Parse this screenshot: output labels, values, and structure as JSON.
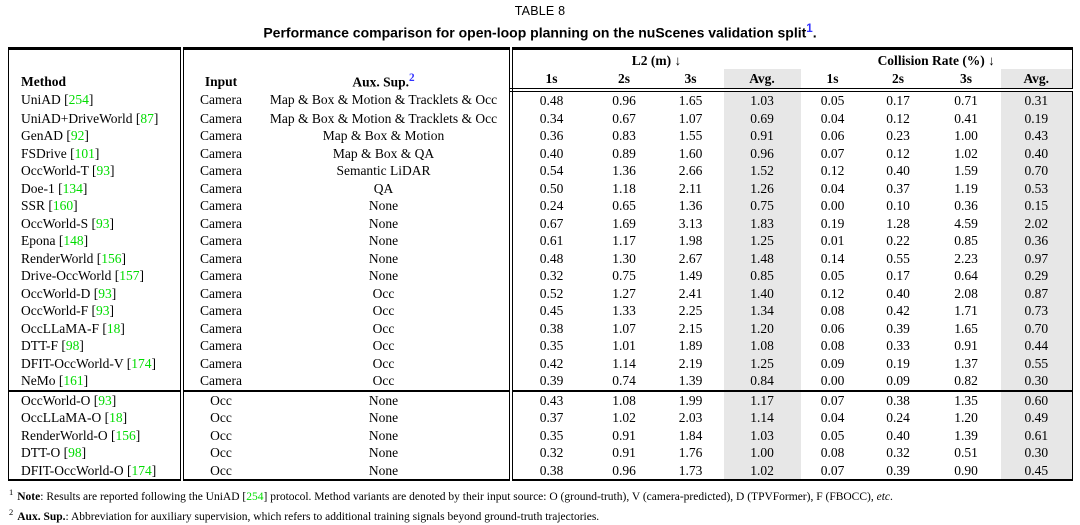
{
  "title": {
    "label": "TABLE 8",
    "caption": "Performance comparison for open-loop planning on the nuScenes validation split",
    "caption_sup": "1",
    "caption_end": "."
  },
  "header": {
    "method": "Method",
    "input": "Input",
    "aux": "Aux. Sup.",
    "aux_sup": "2",
    "group_l2": "L2 (m) ↓",
    "group_cr": "Collision Rate (%) ↓",
    "subs": [
      "1s",
      "2s",
      "3s",
      "Avg."
    ]
  },
  "table": {
    "sections": [
      {
        "name": "camera-input-methods",
        "rows": [
          {
            "method": "UniAD",
            "ref": "254",
            "input": "Camera",
            "aux": "Map & Box & Motion & Tracklets & Occ",
            "l2": [
              "0.48",
              "0.96",
              "1.65",
              "1.03"
            ],
            "cr": [
              "0.05",
              "0.17",
              "0.71",
              "0.31"
            ]
          },
          {
            "method": "UniAD+DriveWorld",
            "ref": "87",
            "input": "Camera",
            "aux": "Map & Box & Motion & Tracklets & Occ",
            "l2": [
              "0.34",
              "0.67",
              "1.07",
              "0.69"
            ],
            "cr": [
              "0.04",
              "0.12",
              "0.41",
              "0.19"
            ]
          },
          {
            "method": "GenAD",
            "ref": "92",
            "input": "Camera",
            "aux": "Map & Box & Motion",
            "l2": [
              "0.36",
              "0.83",
              "1.55",
              "0.91"
            ],
            "cr": [
              "0.06",
              "0.23",
              "1.00",
              "0.43"
            ]
          },
          {
            "method": "FSDrive",
            "ref": "101",
            "input": "Camera",
            "aux": "Map & Box & QA",
            "l2": [
              "0.40",
              "0.89",
              "1.60",
              "0.96"
            ],
            "cr": [
              "0.07",
              "0.12",
              "1.02",
              "0.40"
            ]
          },
          {
            "method": "OccWorld-T",
            "ref": "93",
            "input": "Camera",
            "aux": "Semantic LiDAR",
            "l2": [
              "0.54",
              "1.36",
              "2.66",
              "1.52"
            ],
            "cr": [
              "0.12",
              "0.40",
              "1.59",
              "0.70"
            ]
          },
          {
            "method": "Doe-1",
            "ref": "134",
            "input": "Camera",
            "aux": "QA",
            "l2": [
              "0.50",
              "1.18",
              "2.11",
              "1.26"
            ],
            "cr": [
              "0.04",
              "0.37",
              "1.19",
              "0.53"
            ]
          },
          {
            "method": "SSR",
            "ref": "160",
            "input": "Camera",
            "aux": "None",
            "l2": [
              "0.24",
              "0.65",
              "1.36",
              "0.75"
            ],
            "cr": [
              "0.00",
              "0.10",
              "0.36",
              "0.15"
            ]
          },
          {
            "method": "OccWorld-S",
            "ref": "93",
            "input": "Camera",
            "aux": "None",
            "l2": [
              "0.67",
              "1.69",
              "3.13",
              "1.83"
            ],
            "cr": [
              "0.19",
              "1.28",
              "4.59",
              "2.02"
            ]
          },
          {
            "method": "Epona",
            "ref": "148",
            "input": "Camera",
            "aux": "None",
            "l2": [
              "0.61",
              "1.17",
              "1.98",
              "1.25"
            ],
            "cr": [
              "0.01",
              "0.22",
              "0.85",
              "0.36"
            ]
          },
          {
            "method": "RenderWorld",
            "ref": "156",
            "input": "Camera",
            "aux": "None",
            "l2": [
              "0.48",
              "1.30",
              "2.67",
              "1.48"
            ],
            "cr": [
              "0.14",
              "0.55",
              "2.23",
              "0.97"
            ]
          },
          {
            "method": "Drive-OccWorld",
            "ref": "157",
            "input": "Camera",
            "aux": "None",
            "l2": [
              "0.32",
              "0.75",
              "1.49",
              "0.85"
            ],
            "cr": [
              "0.05",
              "0.17",
              "0.64",
              "0.29"
            ]
          },
          {
            "method": "OccWorld-D",
            "ref": "93",
            "input": "Camera",
            "aux": "Occ",
            "l2": [
              "0.52",
              "1.27",
              "2.41",
              "1.40"
            ],
            "cr": [
              "0.12",
              "0.40",
              "2.08",
              "0.87"
            ]
          },
          {
            "method": "OccWorld-F",
            "ref": "93",
            "input": "Camera",
            "aux": "Occ",
            "l2": [
              "0.45",
              "1.33",
              "2.25",
              "1.34"
            ],
            "cr": [
              "0.08",
              "0.42",
              "1.71",
              "0.73"
            ]
          },
          {
            "method": "OccLLaMA-F",
            "ref": "18",
            "input": "Camera",
            "aux": "Occ",
            "l2": [
              "0.38",
              "1.07",
              "2.15",
              "1.20"
            ],
            "cr": [
              "0.06",
              "0.39",
              "1.65",
              "0.70"
            ]
          },
          {
            "method": "DTT-F",
            "ref": "98",
            "input": "Camera",
            "aux": "Occ",
            "l2": [
              "0.35",
              "1.01",
              "1.89",
              "1.08"
            ],
            "cr": [
              "0.08",
              "0.33",
              "0.91",
              "0.44"
            ]
          },
          {
            "method": "DFIT-OccWorld-V",
            "ref": "174",
            "input": "Camera",
            "aux": "Occ",
            "l2": [
              "0.42",
              "1.14",
              "2.19",
              "1.25"
            ],
            "cr": [
              "0.09",
              "0.19",
              "1.37",
              "0.55"
            ]
          },
          {
            "method": "NeMo",
            "ref": "161",
            "input": "Camera",
            "aux": "Occ",
            "l2": [
              "0.39",
              "0.74",
              "1.39",
              "0.84"
            ],
            "cr": [
              "0.00",
              "0.09",
              "0.82",
              "0.30"
            ]
          }
        ]
      },
      {
        "name": "occ-input-methods",
        "rows": [
          {
            "method": "OccWorld-O",
            "ref": "93",
            "input": "Occ",
            "aux": "None",
            "l2": [
              "0.43",
              "1.08",
              "1.99",
              "1.17"
            ],
            "cr": [
              "0.07",
              "0.38",
              "1.35",
              "0.60"
            ]
          },
          {
            "method": "OccLLaMA-O",
            "ref": "18",
            "input": "Occ",
            "aux": "None",
            "l2": [
              "0.37",
              "1.02",
              "2.03",
              "1.14"
            ],
            "cr": [
              "0.04",
              "0.24",
              "1.20",
              "0.49"
            ]
          },
          {
            "method": "RenderWorld-O",
            "ref": "156",
            "input": "Occ",
            "aux": "None",
            "l2": [
              "0.35",
              "0.91",
              "1.84",
              "1.03"
            ],
            "cr": [
              "0.05",
              "0.40",
              "1.39",
              "0.61"
            ]
          },
          {
            "method": "DTT-O",
            "ref": "98",
            "input": "Occ",
            "aux": "None",
            "l2": [
              "0.32",
              "0.91",
              "1.76",
              "1.00"
            ],
            "cr": [
              "0.08",
              "0.32",
              "0.51",
              "0.30"
            ]
          },
          {
            "method": "DFIT-OccWorld-O",
            "ref": "174",
            "input": "Occ",
            "aux": "None",
            "l2": [
              "0.38",
              "0.96",
              "1.73",
              "1.02"
            ],
            "cr": [
              "0.07",
              "0.39",
              "0.90",
              "0.45"
            ]
          }
        ]
      }
    ]
  },
  "footnotes": [
    {
      "sup": "1",
      "bold": "Note",
      "pre": ": Results are reported following the UniAD ",
      "ref": "254",
      "post": " protocol. Method variants are denoted by their input source: O (ground-truth), V (camera-predicted), D (TPVFormer), F (FBOCC), ",
      "italic": "etc",
      "end": "."
    },
    {
      "sup": "2",
      "bold": "Aux. Sup.",
      "pre": ": Abbreviation for auxiliary supervision, which refers to additional training signals beyond ground-truth trajectories.",
      "ref": "",
      "post": "",
      "italic": "",
      "end": ""
    }
  ],
  "colors": {
    "citation_green": "#00DC00",
    "superscript_blue": "#3333FF",
    "avg_column_gray": "#E7E7E7"
  }
}
